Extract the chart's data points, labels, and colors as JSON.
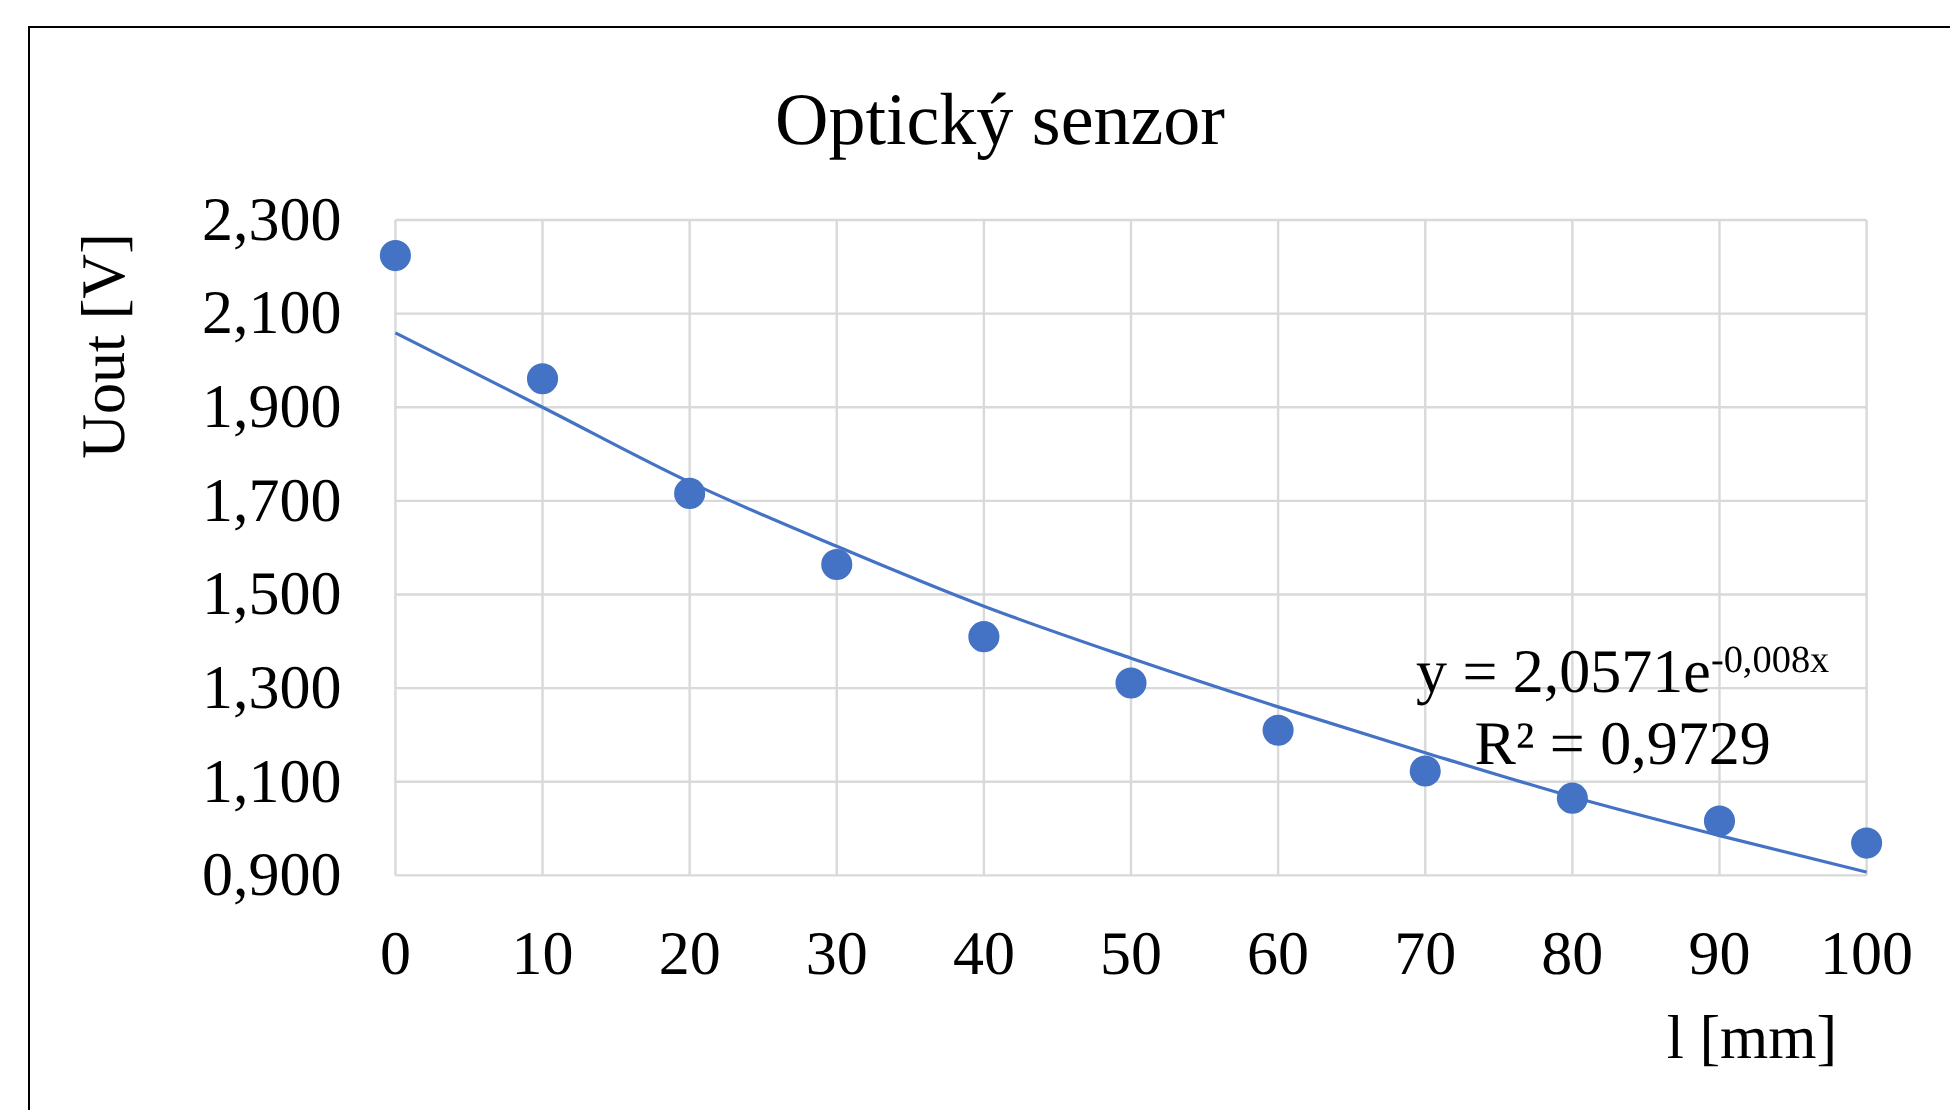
{
  "chart_data": {
    "type": "scatter",
    "title": "Optický senzor",
    "xlabel": "l [mm]",
    "ylabel": "Uout [V]",
    "x": [
      0,
      10,
      20,
      30,
      40,
      50,
      60,
      70,
      80,
      90,
      100
    ],
    "xlim": [
      0,
      100
    ],
    "xticks": [
      0,
      10,
      20,
      30,
      40,
      50,
      60,
      70,
      80,
      90,
      100
    ],
    "ylim": [
      0.9,
      2.3
    ],
    "yticks": [
      {
        "value": 0.9,
        "label": "0,900"
      },
      {
        "value": 1.1,
        "label": "1,100"
      },
      {
        "value": 1.3,
        "label": "1,300"
      },
      {
        "value": 1.5,
        "label": "1,500"
      },
      {
        "value": 1.7,
        "label": "1,700"
      },
      {
        "value": 1.9,
        "label": "1,900"
      },
      {
        "value": 2.1,
        "label": "2,100"
      },
      {
        "value": 2.3,
        "label": "2,300"
      }
    ],
    "grid": true,
    "series": [
      {
        "color": "#4472c4",
        "marker": "circle",
        "values": [
          2.224,
          1.961,
          1.716,
          1.564,
          1.41,
          1.311,
          1.21,
          1.123,
          1.065,
          1.016,
          0.969
        ]
      },
      {
        "type": "line",
        "color": "#4472c4",
        "marker": "none",
        "x": [
          0,
          10,
          20,
          30,
          40,
          50,
          60,
          70,
          80,
          90,
          100
        ],
        "values": [
          2.059,
          1.9,
          1.74,
          1.603,
          1.475,
          1.364,
          1.26,
          1.162,
          1.068,
          0.985,
          0.907
        ]
      }
    ],
    "annotations": [
      "y = 2,0571e$^{-0,008x}$",
      "R² = 0,9729"
    ]
  }
}
